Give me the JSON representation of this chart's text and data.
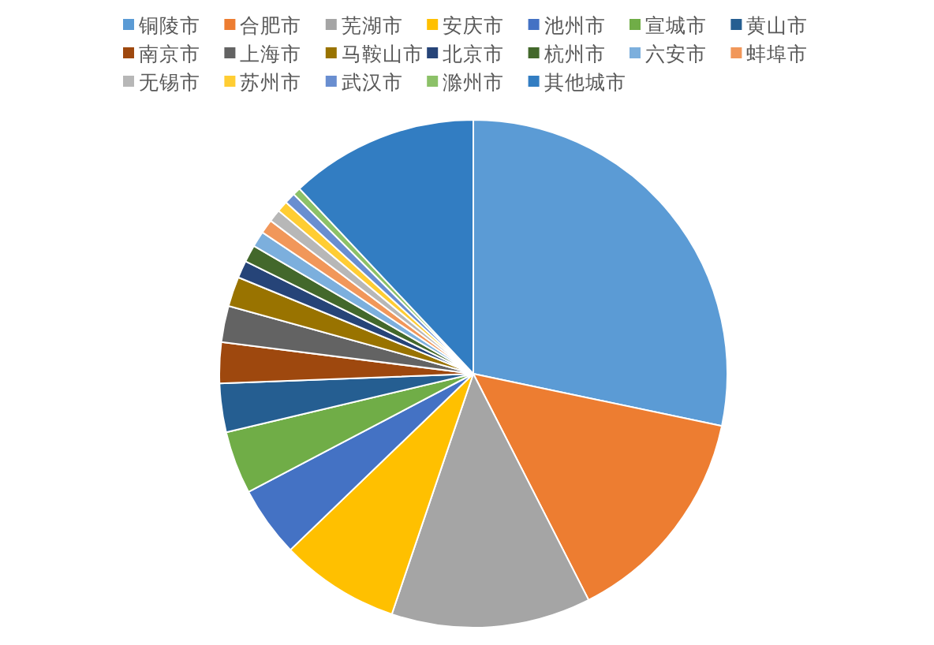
{
  "chart_data": {
    "type": "pie",
    "categories": [
      "铜陵市",
      "合肥市",
      "芜湖市",
      "安庆市",
      "池州市",
      "宣城市",
      "黄山市",
      "南京市",
      "上海市",
      "马鞍山市",
      "北京市",
      "杭州市",
      "六安市",
      "蚌埠市",
      "无锡市",
      "苏州市",
      "武汉市",
      "滁州市",
      "其他城市"
    ],
    "values": [
      28.3,
      14.2,
      12.7,
      7.6,
      4.5,
      4.0,
      3.1,
      2.6,
      2.3,
      1.9,
      1.1,
      1.1,
      1.0,
      0.9,
      0.8,
      0.7,
      0.7,
      0.5,
      12.0
    ],
    "colors": [
      "#5b9bd5",
      "#ed7d31",
      "#a5a5a5",
      "#ffc000",
      "#4472c4",
      "#70ad47",
      "#255e91",
      "#9e480e",
      "#636363",
      "#997300",
      "#264478",
      "#43682b",
      "#7cafdd",
      "#f1975a",
      "#b7b7b7",
      "#ffcd33",
      "#698ed0",
      "#8cc168",
      "#327dc2"
    ],
    "legend": "top"
  }
}
